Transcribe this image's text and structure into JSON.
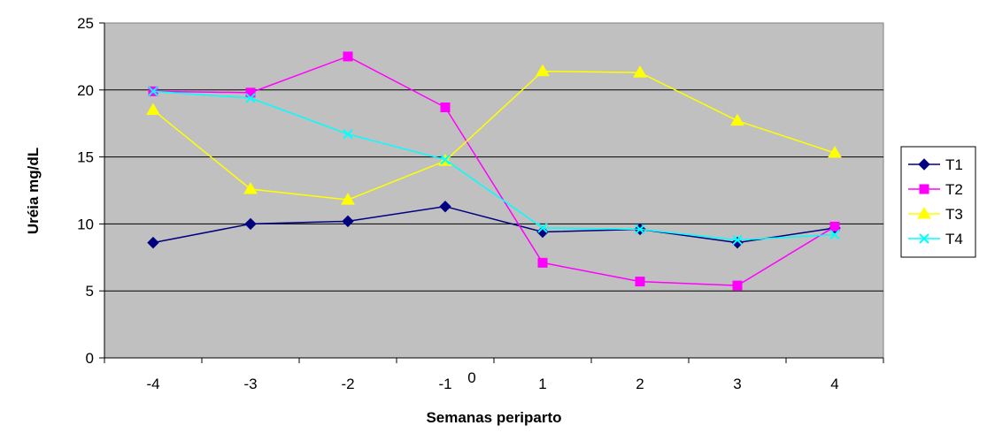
{
  "chart_data": {
    "type": "line",
    "xlabel": "Semanas periparto",
    "ylabel": "Uréia mg/dL",
    "categories": [
      "-4",
      "-3",
      "-2",
      "-1",
      "1",
      "2",
      "3",
      "4"
    ],
    "center_label": "0",
    "ylim": [
      0,
      25
    ],
    "yticks": [
      0,
      5,
      10,
      15,
      20,
      25
    ],
    "grid": true,
    "legend_position": "right",
    "plot_background": "#c0c0c0",
    "series": [
      {
        "name": "T1",
        "color": "#000080",
        "marker": "diamond",
        "values": [
          8.6,
          10.0,
          10.2,
          11.3,
          9.4,
          9.6,
          8.6,
          9.7
        ]
      },
      {
        "name": "T2",
        "color": "#ff00ff",
        "marker": "square",
        "values": [
          19.9,
          19.8,
          22.5,
          18.7,
          7.1,
          5.7,
          5.4,
          9.8
        ]
      },
      {
        "name": "T3",
        "color": "#ffff00",
        "marker": "triangle",
        "values": [
          18.5,
          12.6,
          11.8,
          14.7,
          21.4,
          21.3,
          17.7,
          15.3
        ]
      },
      {
        "name": "T4",
        "color": "#00ffff",
        "marker": "x",
        "values": [
          19.9,
          19.4,
          16.7,
          14.8,
          9.7,
          9.6,
          8.8,
          9.2
        ]
      }
    ]
  }
}
